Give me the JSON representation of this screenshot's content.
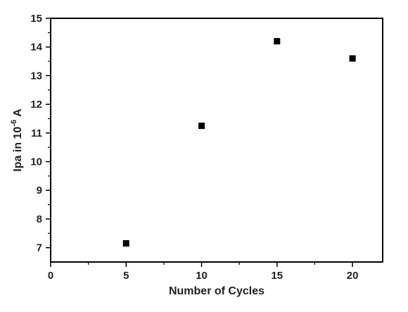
{
  "chart_data": {
    "type": "scatter",
    "title": "",
    "xlabel": "Number of Cycles",
    "ylabel": "Ipa in 10",
    "ylabel_exponent": "-6",
    "ylabel_unit": "A",
    "xlim": [
      0,
      22
    ],
    "ylim": [
      6.5,
      15
    ],
    "xticks": [
      "0",
      "5",
      "10",
      "15",
      "20"
    ],
    "yticks": [
      "7",
      "8",
      "9",
      "10",
      "11",
      "12",
      "13",
      "14",
      "15"
    ],
    "grid": false,
    "legend": "none",
    "marker": "square",
    "colors": {
      "marker": "#000000",
      "axis": "#000000"
    },
    "series": [
      {
        "x": [
          5,
          10,
          15,
          20
        ],
        "y": [
          7.15,
          11.25,
          14.2,
          13.6
        ]
      }
    ]
  }
}
